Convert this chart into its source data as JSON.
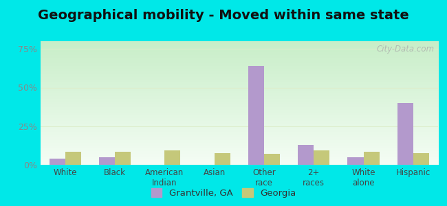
{
  "title": "Geographical mobility - Moved within same state",
  "categories": [
    "White",
    "Black",
    "American\nIndian",
    "Asian",
    "Other\nrace",
    "2+\nraces",
    "White\nalone",
    "Hispanic"
  ],
  "grantville_values": [
    4.0,
    5.0,
    0,
    0,
    64,
    13,
    5.0,
    40
  ],
  "georgia_values": [
    8.5,
    8.5,
    9.5,
    7.5,
    7.0,
    9.5,
    8.5,
    7.5
  ],
  "grantville_color": "#b399cc",
  "georgia_color": "#c5c87a",
  "bar_width": 0.32,
  "ylim": [
    0,
    80
  ],
  "yticks": [
    0,
    25,
    50,
    75
  ],
  "ytick_labels": [
    "0%",
    "25%",
    "50%",
    "75%"
  ],
  "bg_top_color": "#f5fdf5",
  "bg_bottom_color": "#c8eec8",
  "outer_background": "#00e8e8",
  "title_fontsize": 14,
  "legend_label_grantville": "Grantville, GA",
  "legend_label_georgia": "Georgia",
  "watermark": "City-Data.com",
  "tick_color": "#888888",
  "grid_color": "#ddeecc"
}
